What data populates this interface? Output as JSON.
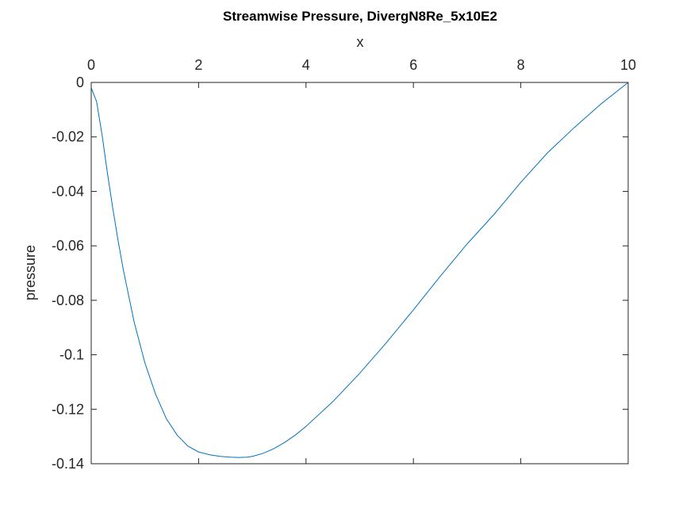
{
  "chart_data": {
    "type": "line",
    "title": "Streamwise Pressure, DivergN8Re_5x10E2",
    "xlabel": "x",
    "ylabel": "pressure",
    "xlim": [
      0,
      10
    ],
    "ylim": [
      -0.14,
      0
    ],
    "x_axis_location": "top",
    "grid": false,
    "x_ticks": [
      0,
      2,
      4,
      6,
      8,
      10
    ],
    "x_tick_labels": [
      "0",
      "2",
      "4",
      "6",
      "8",
      "10"
    ],
    "y_ticks": [
      0,
      -0.02,
      -0.04,
      -0.06,
      -0.08,
      -0.1,
      -0.12,
      -0.14
    ],
    "y_tick_labels": [
      "0",
      "-0.02",
      "-0.04",
      "-0.06",
      "-0.08",
      "-0.1",
      "-0.12",
      "-0.14"
    ],
    "series": [
      {
        "color": "#0072bd",
        "x": [
          0,
          0.1,
          0.2,
          0.3,
          0.4,
          0.5,
          0.6,
          0.8,
          1.0,
          1.2,
          1.4,
          1.6,
          1.8,
          2.0,
          2.2,
          2.4,
          2.6,
          2.75,
          2.9,
          3.0,
          3.2,
          3.4,
          3.6,
          3.8,
          4.0,
          4.5,
          5.0,
          5.5,
          6.0,
          6.5,
          7.0,
          7.5,
          8.0,
          8.5,
          9.0,
          9.5,
          10.0
        ],
        "y": [
          -0.002,
          -0.007,
          -0.019,
          -0.033,
          -0.046,
          -0.058,
          -0.069,
          -0.088,
          -0.103,
          -0.1145,
          -0.1235,
          -0.1295,
          -0.1335,
          -0.1357,
          -0.1367,
          -0.1373,
          -0.1376,
          -0.1377,
          -0.1376,
          -0.1373,
          -0.1362,
          -0.1345,
          -0.1322,
          -0.1295,
          -0.1263,
          -0.1172,
          -0.1068,
          -0.0955,
          -0.0835,
          -0.0712,
          -0.0593,
          -0.0485,
          -0.0367,
          -0.0258,
          -0.0165,
          -0.0078,
          0.0
        ]
      }
    ]
  }
}
